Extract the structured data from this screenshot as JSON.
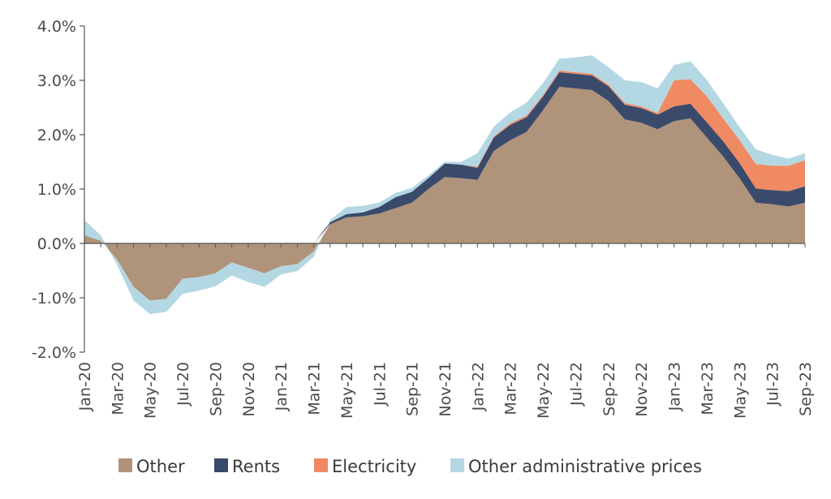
{
  "chart_data": {
    "type": "area",
    "stacked": true,
    "grid": false,
    "legend_position": "bottom",
    "ylim": [
      -2.0,
      4.0
    ],
    "yticks": [
      "4.0%",
      "3.0%",
      "2.0%",
      "1.0%",
      "0.0%",
      "-1.0%",
      "-2.0%"
    ],
    "ytick_values": [
      4.0,
      3.0,
      2.0,
      1.0,
      0.0,
      -1.0,
      -2.0
    ],
    "x": [
      "Jan-20",
      "Feb-20",
      "Mar-20",
      "Apr-20",
      "May-20",
      "Jun-20",
      "Jul-20",
      "Aug-20",
      "Sep-20",
      "Oct-20",
      "Nov-20",
      "Dec-20",
      "Jan-21",
      "Feb-21",
      "Mar-21",
      "Apr-21",
      "May-21",
      "Jun-21",
      "Jul-21",
      "Aug-21",
      "Sep-21",
      "Oct-21",
      "Nov-21",
      "Dec-21",
      "Jan-22",
      "Feb-22",
      "Mar-22",
      "Apr-22",
      "May-22",
      "Jun-22",
      "Jul-22",
      "Aug-22",
      "Sep-22",
      "Oct-22",
      "Nov-22",
      "Dec-22",
      "Jan-23",
      "Feb-23",
      "Mar-23",
      "Apr-23",
      "May-23",
      "Jun-23",
      "Jul-23",
      "Aug-23",
      "Sep-23"
    ],
    "xticks": [
      "Jan-20",
      "Mar-20",
      "May-20",
      "Jul-20",
      "Sep-20",
      "Nov-20",
      "Jan-21",
      "Mar-21",
      "May-21",
      "Jul-21",
      "Sep-21",
      "Nov-21",
      "Jan-22",
      "Mar-22",
      "May-22",
      "Jul-22",
      "Sep-22",
      "Nov-22",
      "Jan-23",
      "Mar-23",
      "May-23",
      "Jul-23",
      "Sep-23"
    ],
    "series": [
      {
        "name": "Other",
        "color": "#b0937b",
        "values": [
          0.15,
          0.05,
          -0.3,
          -0.8,
          -1.05,
          -1.02,
          -0.65,
          -0.62,
          -0.55,
          -0.35,
          -0.45,
          -0.55,
          -0.42,
          -0.38,
          -0.15,
          0.35,
          0.48,
          0.5,
          0.55,
          0.65,
          0.75,
          1.0,
          1.22,
          1.2,
          1.17,
          1.7,
          1.9,
          2.05,
          2.45,
          2.88,
          2.85,
          2.82,
          2.62,
          2.28,
          2.22,
          2.1,
          2.25,
          2.3,
          1.95,
          1.6,
          1.2,
          0.75,
          0.72,
          0.68,
          0.75
        ]
      },
      {
        "name": "Rents",
        "color": "#3a4a6b",
        "values": [
          0,
          0,
          0,
          0,
          0,
          0,
          0,
          0,
          0,
          0,
          0,
          0,
          0,
          0,
          0,
          0.04,
          0.06,
          0.07,
          0.12,
          0.2,
          0.2,
          0.2,
          0.25,
          0.25,
          0.22,
          0.25,
          0.28,
          0.27,
          0.25,
          0.27,
          0.27,
          0.27,
          0.27,
          0.27,
          0.27,
          0.27,
          0.27,
          0.27,
          0.28,
          0.28,
          0.28,
          0.26,
          0.26,
          0.28,
          0.3
        ]
      },
      {
        "name": "Electricity",
        "color": "#ef8a62",
        "values": [
          0,
          0,
          0,
          0,
          0,
          0,
          0,
          0,
          0,
          0,
          0,
          0,
          0,
          0,
          0,
          0,
          0,
          0,
          0,
          0,
          0,
          0,
          0,
          0,
          0.02,
          0.02,
          0.03,
          0.03,
          0.03,
          0.03,
          0.03,
          0.03,
          0.03,
          0.03,
          0.03,
          0.03,
          0.48,
          0.45,
          0.48,
          0.42,
          0.42,
          0.45,
          0.45,
          0.47,
          0.48
        ]
      },
      {
        "name": "Other administrative prices",
        "color": "#b4d8e3",
        "values": [
          0.28,
          0.1,
          -0.1,
          -0.25,
          -0.25,
          -0.24,
          -0.28,
          -0.25,
          -0.24,
          -0.24,
          -0.26,
          -0.25,
          -0.15,
          -0.13,
          -0.1,
          0.04,
          0.13,
          0.12,
          0.08,
          0.08,
          0.07,
          0.05,
          0.03,
          0.05,
          0.25,
          0.18,
          0.2,
          0.24,
          0.22,
          0.22,
          0.27,
          0.34,
          0.32,
          0.42,
          0.45,
          0.45,
          0.28,
          0.33,
          0.3,
          0.28,
          0.24,
          0.27,
          0.2,
          0.13,
          0.13
        ]
      }
    ]
  }
}
